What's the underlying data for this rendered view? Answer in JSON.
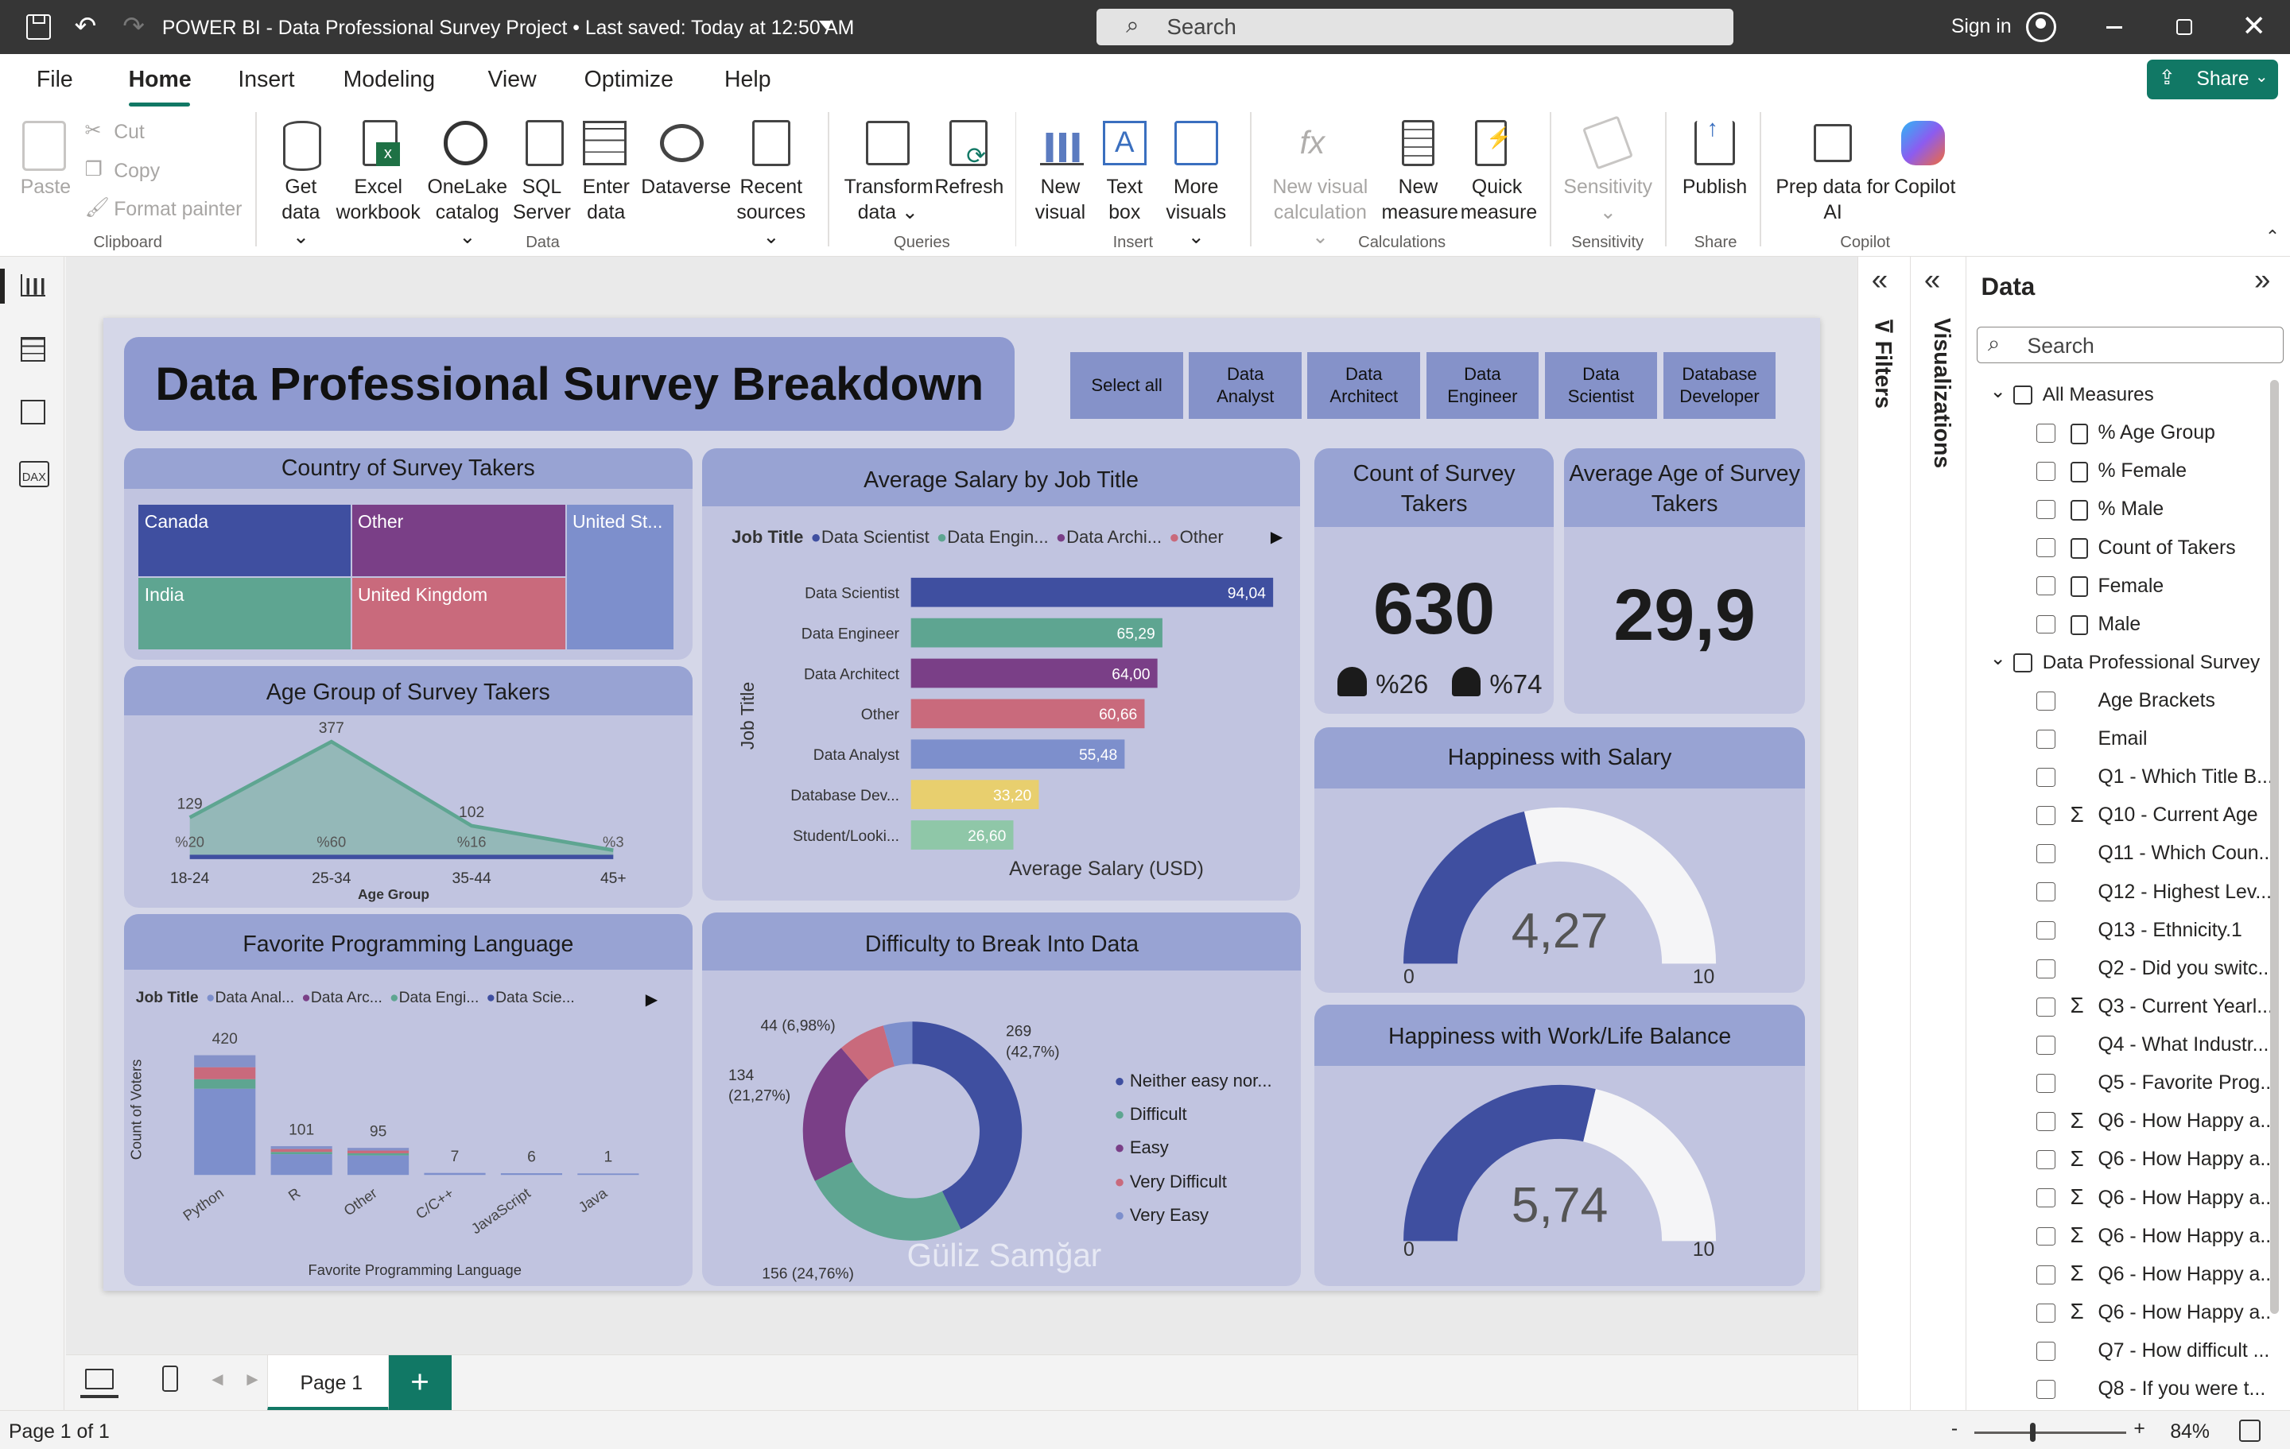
{
  "titlebar": {
    "title": "POWER BI - Data Professional Survey Project • Last saved: Today at 12:50 AM",
    "search_placeholder": "Search",
    "signin": "Sign in"
  },
  "menu": {
    "tabs": [
      "File",
      "Home",
      "Insert",
      "Modeling",
      "View",
      "Optimize",
      "Help"
    ],
    "share": "Share"
  },
  "ribbon": {
    "paste": "Paste",
    "cut": "Cut",
    "copy": "Copy",
    "format_painter": "Format painter",
    "clipboard": "Clipboard",
    "get_data": [
      "Get",
      "data ⌄"
    ],
    "excel": [
      "Excel",
      "workbook"
    ],
    "onelake": [
      "OneLake",
      "catalog ⌄"
    ],
    "sql": [
      "SQL",
      "Server"
    ],
    "enter": [
      "Enter",
      "data"
    ],
    "dataverse": "Dataverse",
    "recent": [
      "Recent",
      "sources ⌄"
    ],
    "data_group": "Data",
    "transform": [
      "Transform",
      "data ⌄"
    ],
    "refresh": "Refresh",
    "queries": "Queries",
    "new_visual": [
      "New",
      "visual"
    ],
    "text_box": [
      "Text",
      "box"
    ],
    "more_visuals": [
      "More",
      "visuals ⌄"
    ],
    "insert": "Insert",
    "new_visual_calc": [
      "New visual",
      "calculation ⌄"
    ],
    "new_measure": [
      "New",
      "measure"
    ],
    "quick_measure": [
      "Quick",
      "measure"
    ],
    "calculations": "Calculations",
    "sensitivity": [
      "Sensitivity",
      "⌄"
    ],
    "sensitivity_group": "Sensitivity",
    "publish": "Publish",
    "share_group": "Share",
    "prep": [
      "Prep data for",
      "AI"
    ],
    "copilot": "Copilot",
    "copilot_group": "Copilot"
  },
  "report": {
    "title": "Data Professional Survey Breakdown",
    "slicers": [
      "Select all",
      "Data Analyst",
      "Data Architect",
      "Data Engineer",
      "Data Scientist",
      "Database Developer"
    ],
    "country": {
      "title": "Country of Survey Takers",
      "cells": [
        {
          "label": "Canada",
          "color": "#3f4fa0"
        },
        {
          "label": "Other",
          "color": "#7a3f87"
        },
        {
          "label": "United St...",
          "color": "#7d8fcc"
        },
        {
          "label": "India",
          "color": "#5ea591"
        },
        {
          "label": "United Kingdom",
          "color": "#c96a7c"
        }
      ]
    },
    "age": {
      "title": "Age Group of Survey Takers",
      "xlabel": "Age Group"
    },
    "salary": {
      "title": "Average Salary by Job Title",
      "legend_title": "Job Title",
      "legend": [
        "Data Scientist",
        "Data Engin...",
        "Data Archi...",
        "Other"
      ],
      "ylabel": "Job Title",
      "xlabel": "Average Salary (USD)"
    },
    "count": {
      "title": "Count of Survey Takers",
      "value": "630",
      "female": "%26",
      "male": "%74"
    },
    "avgage": {
      "title": "Average Age of Survey Takers",
      "value": "29,9"
    },
    "lang": {
      "title": "Favorite Programming Language",
      "legend_title": "Job Title",
      "legend": [
        "Data Anal...",
        "Data Arc...",
        "Data Engi...",
        "Data Scie..."
      ],
      "ylabel": "Count of Voters",
      "xlabel": "Favorite Programming Language"
    },
    "difficulty": {
      "title": "Difficulty to Break Into Data",
      "watermark": "Güliz Samğar"
    },
    "happy_salary": {
      "title": "Happiness with Salary",
      "value": "4,27",
      "min": "0",
      "max": "10"
    },
    "happy_wlb": {
      "title": "Happiness with Work/Life Balance",
      "value": "5,74",
      "min": "0",
      "max": "10"
    }
  },
  "chart_data": [
    {
      "type": "area",
      "title": "Age Group of Survey Takers",
      "xlabel": "Age Group",
      "categories": [
        "18-24",
        "25-34",
        "35-44",
        "45+"
      ],
      "values": [
        129,
        377,
        102,
        22
      ],
      "data_labels": [
        "129",
        "377",
        "102",
        ""
      ],
      "pct_labels": [
        "%20",
        "%60",
        "%16",
        "%3"
      ]
    },
    {
      "type": "bar",
      "orientation": "horizontal",
      "title": "Average Salary by Job Title",
      "xlabel": "Average Salary (USD)",
      "ylabel": "Job Title",
      "categories": [
        "Data Scientist",
        "Data Engineer",
        "Data Architect",
        "Other",
        "Data Analyst",
        "Database Dev...",
        "Student/Looki..."
      ],
      "values": [
        94.04,
        65.29,
        64.0,
        60.66,
        55.48,
        33.2,
        26.6
      ],
      "labels": [
        "94,04",
        "65,29",
        "64,00",
        "60,66",
        "55,48",
        "33,20",
        "26,60"
      ],
      "colors": [
        "#3f4fa0",
        "#5ea591",
        "#7a3f87",
        "#c96a7c",
        "#7d8fcc",
        "#e8cf6e",
        "#8fc7a8"
      ]
    },
    {
      "type": "bar",
      "stacked": true,
      "title": "Favorite Programming Language",
      "xlabel": "Favorite Programming Language",
      "ylabel": "Count of Voters",
      "categories": [
        "Python",
        "R",
        "Other",
        "C/C++",
        "JavaScript",
        "Java"
      ],
      "values": [
        420,
        101,
        95,
        7,
        6,
        1
      ],
      "labels": [
        "420",
        "101",
        "95",
        "7",
        "6",
        "1"
      ]
    },
    {
      "type": "pie",
      "donut": true,
      "title": "Difficulty to Break Into Data",
      "categories": [
        "Neither easy nor...",
        "Difficult",
        "Easy",
        "Very Difficult",
        "Very Easy"
      ],
      "values": [
        269,
        156,
        134,
        44,
        27
      ],
      "labels": [
        "269\n(42,7%)",
        "156 (24,76%)",
        "134\n(21,27%)",
        "44 (6,98%)",
        ""
      ],
      "colors": [
        "#3f4fa0",
        "#5ea591",
        "#7a3f87",
        "#c96a7c",
        "#7d8fcc"
      ]
    }
  ],
  "gauges": {
    "salary": 0.427,
    "wlb": 0.574
  },
  "panes": {
    "filters": "Filters",
    "visualizations": "Visualizations",
    "data_title": "Data",
    "search": "Search",
    "fields": [
      {
        "label": "All Measures",
        "level": 0,
        "expand": true,
        "icon": "calc"
      },
      {
        "label": "% Age Group",
        "level": 1,
        "icon": "calc"
      },
      {
        "label": "% Female",
        "level": 1,
        "icon": "calc"
      },
      {
        "label": "% Male",
        "level": 1,
        "icon": "calc"
      },
      {
        "label": "Count of Takers",
        "level": 1,
        "icon": "calc"
      },
      {
        "label": "Female",
        "level": 1,
        "icon": "calc"
      },
      {
        "label": "Male",
        "level": 1,
        "icon": "calc"
      },
      {
        "label": "Data Professional Survey",
        "level": 0,
        "expand": true,
        "icon": "table"
      },
      {
        "label": "Age Brackets",
        "level": 1,
        "icon": ""
      },
      {
        "label": "Email",
        "level": 1,
        "icon": ""
      },
      {
        "label": "Q1 - Which Title B...",
        "level": 1,
        "icon": ""
      },
      {
        "label": "Q10 - Current Age",
        "level": 1,
        "icon": "sigma"
      },
      {
        "label": "Q11 - Which Coun...",
        "level": 1,
        "icon": ""
      },
      {
        "label": "Q12 - Highest Lev...",
        "level": 1,
        "icon": ""
      },
      {
        "label": "Q13 - Ethnicity.1",
        "level": 1,
        "icon": ""
      },
      {
        "label": "Q2 - Did you switc...",
        "level": 1,
        "icon": ""
      },
      {
        "label": "Q3 - Current Yearl...",
        "level": 1,
        "icon": "sigma"
      },
      {
        "label": "Q4 - What Industr...",
        "level": 1,
        "icon": ""
      },
      {
        "label": "Q5 - Favorite Prog...",
        "level": 1,
        "icon": ""
      },
      {
        "label": "Q6 - How Happy a...",
        "level": 1,
        "icon": "sigma"
      },
      {
        "label": "Q6 - How Happy a...",
        "level": 1,
        "icon": "sigma"
      },
      {
        "label": "Q6 - How Happy a...",
        "level": 1,
        "icon": "sigma"
      },
      {
        "label": "Q6 - How Happy a...",
        "level": 1,
        "icon": "sigma"
      },
      {
        "label": "Q6 - How Happy a...",
        "level": 1,
        "icon": "sigma"
      },
      {
        "label": "Q6 - How Happy a...",
        "level": 1,
        "icon": "sigma"
      },
      {
        "label": "Q7 - How difficult ...",
        "level": 1,
        "icon": ""
      },
      {
        "label": "Q8 - If you were t...",
        "level": 1,
        "icon": ""
      }
    ]
  },
  "pages": {
    "current": "Page 1",
    "add": "+"
  },
  "status": {
    "page": "Page 1 of 1",
    "zoom": "84%",
    "minus": "-",
    "plus": "+"
  }
}
